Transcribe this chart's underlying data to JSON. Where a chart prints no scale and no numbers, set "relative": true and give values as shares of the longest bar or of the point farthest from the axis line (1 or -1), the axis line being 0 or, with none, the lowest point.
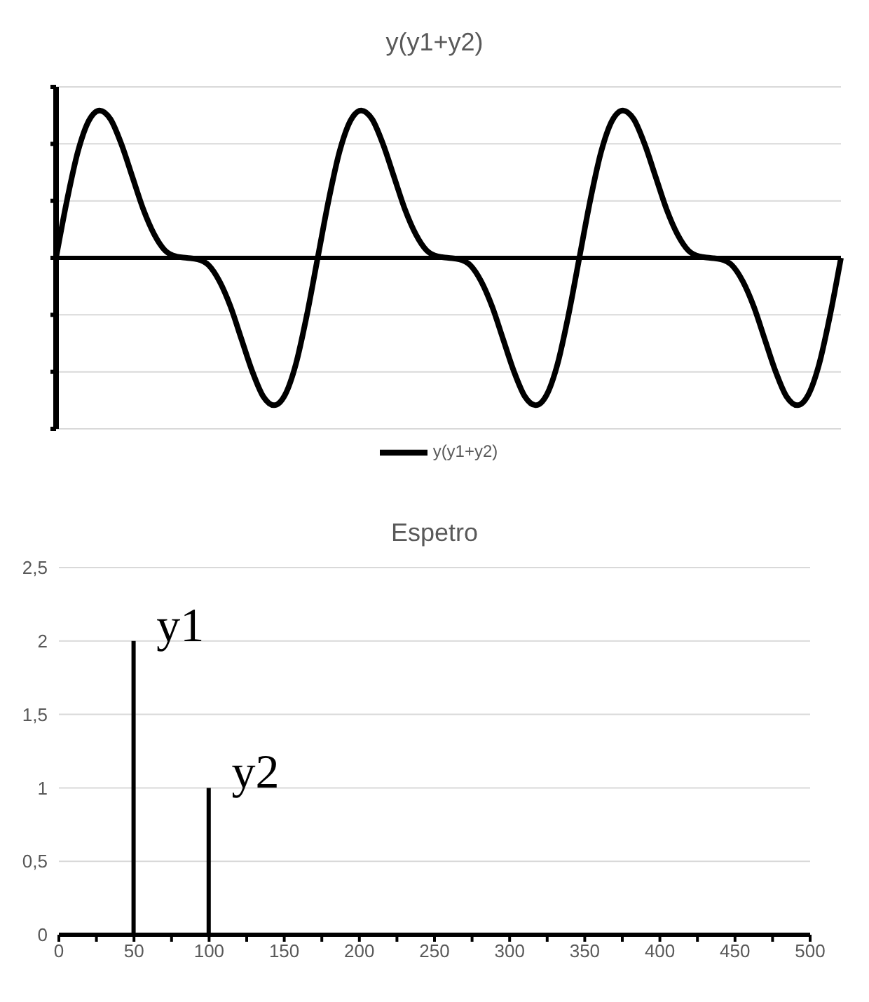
{
  "chart_data": [
    {
      "type": "line",
      "title": "y(y1+y2)",
      "relative": true,
      "grid": "y",
      "legend": "bottom",
      "marker": "none",
      "line_style": "solid",
      "categories": [
        null,
        null,
        null,
        null,
        null,
        null,
        null,
        null,
        null,
        null,
        null,
        null,
        null,
        null,
        null,
        null,
        null,
        null,
        null,
        null,
        null,
        null,
        null,
        null,
        null,
        null,
        null,
        null,
        null,
        null,
        null,
        null,
        null,
        null,
        null,
        null,
        null,
        null,
        null,
        null,
        null,
        null,
        null,
        null,
        null,
        null,
        null,
        null,
        null,
        null,
        null,
        null,
        null,
        null,
        null,
        null,
        null,
        null,
        null,
        null,
        null,
        null,
        null,
        null,
        null,
        null,
        null,
        null,
        null,
        null,
        null,
        null,
        null
      ],
      "series": [
        {
          "name": "y(y1+y2)",
          "color": "#000000",
          "values": [
            0,
            0.39,
            0.72,
            0.93,
            1,
            0.94,
            0.77,
            0.55,
            0.33,
            0.16,
            0.05,
            0.01,
            0,
            -0.01,
            -0.05,
            -0.16,
            -0.33,
            -0.55,
            -0.77,
            -0.94,
            -1,
            -0.93,
            -0.72,
            -0.39,
            0,
            0.39,
            0.72,
            0.93,
            1,
            0.94,
            0.77,
            0.55,
            0.33,
            0.16,
            0.05,
            0.01,
            0,
            -0.01,
            -0.05,
            -0.16,
            -0.33,
            -0.55,
            -0.77,
            -0.94,
            -1,
            -0.93,
            -0.72,
            -0.39,
            0,
            0.39,
            0.72,
            0.93,
            1,
            0.94,
            0.77,
            0.55,
            0.33,
            0.16,
            0.05,
            0.01,
            0,
            -0.01,
            -0.05,
            -0.16,
            -0.33,
            -0.55,
            -0.77,
            -0.94,
            -1,
            -0.93,
            -0.72,
            -0.39,
            0
          ]
        }
      ]
    },
    {
      "type": "bar",
      "title": "Espetro",
      "x": [
        50,
        100
      ],
      "values": [
        2,
        1
      ],
      "color": "#000000",
      "grid": "y",
      "xlim": [
        0,
        500
      ],
      "xticks": [
        0,
        {
          "value": 25,
          "label": null
        },
        50,
        {
          "value": 75,
          "label": null
        },
        100,
        {
          "value": 125,
          "label": null
        },
        150,
        {
          "value": 175,
          "label": null
        },
        200,
        {
          "value": 225,
          "label": null
        },
        250,
        {
          "value": 275,
          "label": null
        },
        300,
        {
          "value": 325,
          "label": null
        },
        350,
        {
          "value": 375,
          "label": null
        },
        400,
        {
          "value": 425,
          "label": null
        },
        450,
        {
          "value": 475,
          "label": null
        },
        500
      ],
      "ylim": [
        0,
        2.5
      ],
      "yticks": [
        0,
        {
          "value": 0.5,
          "label": "0,5"
        },
        1,
        {
          "value": 1.5,
          "label": "1,5"
        },
        2,
        {
          "value": 2.5,
          "label": "2,5"
        }
      ],
      "annotations": [
        {
          "text": "y1",
          "x": 50,
          "y": 2
        },
        {
          "text": "y2",
          "x": 100,
          "y": 1
        }
      ]
    }
  ]
}
